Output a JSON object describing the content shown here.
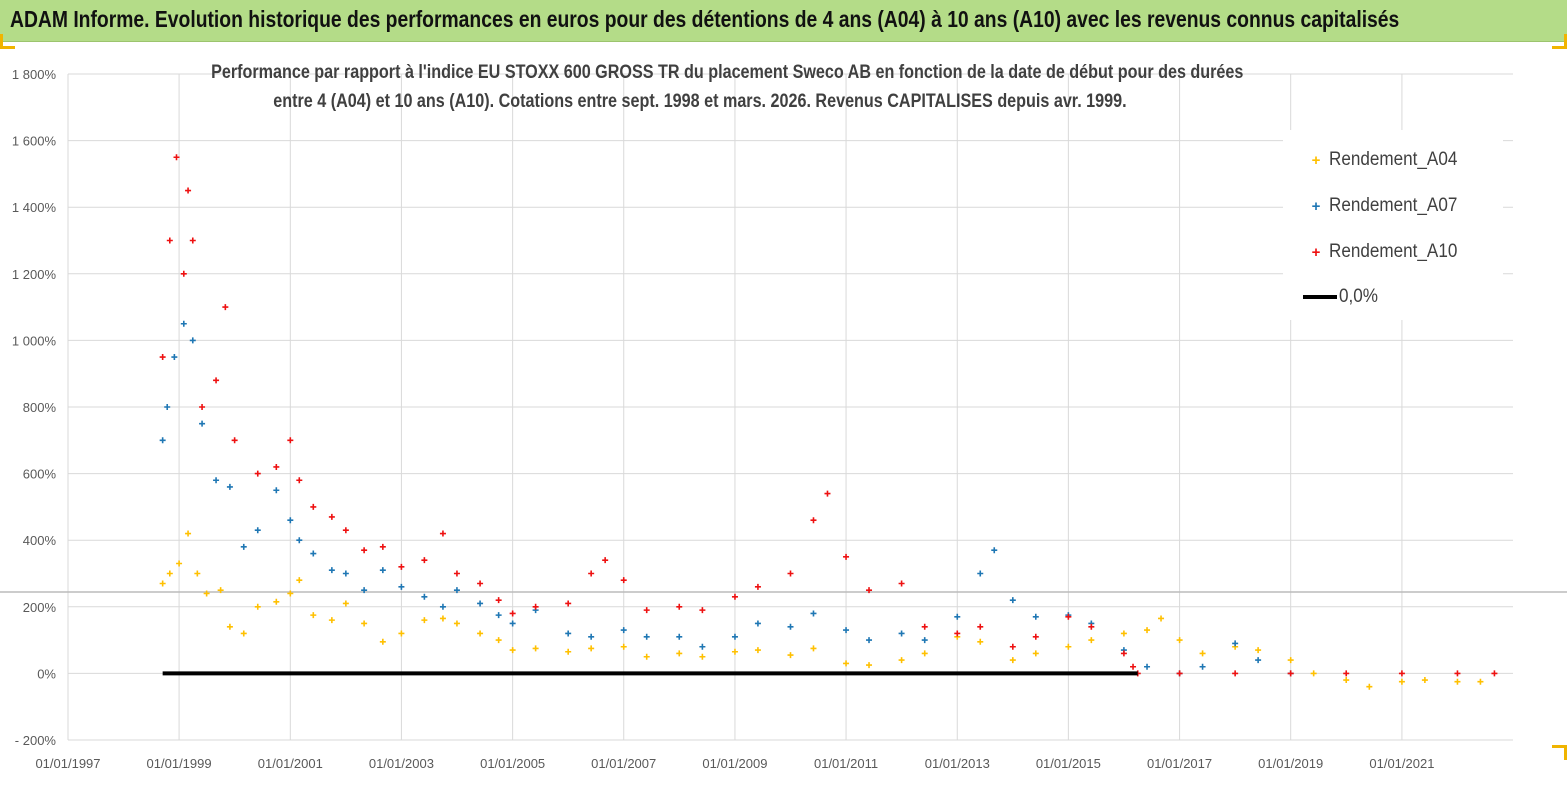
{
  "banner": {
    "title": "ADAM Informe. Evolution historique des performances en euros pour des détentions de 4 ans (A04) à 10 ans (A10) avec les revenus connus capitalisés"
  },
  "chart_data": {
    "type": "scatter",
    "title_line1": "Performance par rapport à l'indice EU STOXX 600 GROSS TR  du placement Sweco AB en fonction de la date de début pour des durées",
    "title_line2": "entre 4 (A04) et 10 ans (A10).  Cotations entre sept. 1998 et mars. 2026.  Revenus CAPITALISES depuis avr. 1999.",
    "xlabel": "",
    "ylabel": "",
    "x_range": [
      "1997-01-01",
      "2023-01-01"
    ],
    "ylim": [
      -200,
      1800
    ],
    "y_ticks": [
      -200,
      0,
      200,
      400,
      600,
      800,
      1000,
      1200,
      1400,
      1600,
      1800
    ],
    "y_tick_labels": [
      "- 200%",
      "0%",
      "200%",
      "400%",
      "600%",
      "800%",
      "1 000%",
      "1 200%",
      "1 400%",
      "1 600%",
      "1 800%"
    ],
    "x_ticks": [
      "1997-01-01",
      "1999-01-01",
      "2001-01-01",
      "2003-01-01",
      "2005-01-01",
      "2007-01-01",
      "2009-01-01",
      "2011-01-01",
      "2013-01-01",
      "2015-01-01",
      "2017-01-01",
      "2019-01-01",
      "2021-01-01"
    ],
    "x_tick_labels": [
      "01/01/1997",
      "01/01/1999",
      "01/01/2001",
      "01/01/2003",
      "01/01/2005",
      "01/01/2007",
      "01/01/2009",
      "01/01/2011",
      "01/01/2013",
      "01/01/2015",
      "01/01/2017",
      "01/01/2019",
      "01/01/2021"
    ],
    "grid": true,
    "legend_position": "top-right",
    "series": [
      {
        "name": "Rendement_A04",
        "color": "#ffc000",
        "marker": "+",
        "points": [
          [
            "1998-09-15",
            270
          ],
          [
            "1998-11-01",
            300
          ],
          [
            "1999-01-01",
            330
          ],
          [
            "1999-03-01",
            420
          ],
          [
            "1999-05-01",
            300
          ],
          [
            "1999-07-01",
            240
          ],
          [
            "1999-10-01",
            250
          ],
          [
            "1999-12-01",
            140
          ],
          [
            "2000-03-01",
            120
          ],
          [
            "2000-06-01",
            200
          ],
          [
            "2000-10-01",
            215
          ],
          [
            "2001-01-01",
            240
          ],
          [
            "2001-03-01",
            280
          ],
          [
            "2001-06-01",
            175
          ],
          [
            "2001-10-01",
            160
          ],
          [
            "2002-01-01",
            210
          ],
          [
            "2002-05-01",
            150
          ],
          [
            "2002-09-01",
            95
          ],
          [
            "2003-01-01",
            120
          ],
          [
            "2003-06-01",
            160
          ],
          [
            "2003-10-01",
            165
          ],
          [
            "2004-01-01",
            150
          ],
          [
            "2004-06-01",
            120
          ],
          [
            "2004-10-01",
            100
          ],
          [
            "2005-01-01",
            70
          ],
          [
            "2005-06-01",
            75
          ],
          [
            "2006-01-01",
            65
          ],
          [
            "2006-06-01",
            75
          ],
          [
            "2007-01-01",
            80
          ],
          [
            "2007-06-01",
            50
          ],
          [
            "2008-01-01",
            60
          ],
          [
            "2008-06-01",
            50
          ],
          [
            "2009-01-01",
            65
          ],
          [
            "2009-06-01",
            70
          ],
          [
            "2010-01-01",
            55
          ],
          [
            "2010-06-01",
            75
          ],
          [
            "2011-01-01",
            30
          ],
          [
            "2011-06-01",
            25
          ],
          [
            "2012-01-01",
            40
          ],
          [
            "2012-06-01",
            60
          ],
          [
            "2013-01-01",
            110
          ],
          [
            "2013-06-01",
            95
          ],
          [
            "2014-01-01",
            40
          ],
          [
            "2014-06-01",
            60
          ],
          [
            "2015-01-01",
            80
          ],
          [
            "2015-06-01",
            100
          ],
          [
            "2016-01-01",
            120
          ],
          [
            "2016-06-01",
            130
          ],
          [
            "2016-09-01",
            165
          ],
          [
            "2017-01-01",
            100
          ],
          [
            "2017-06-01",
            60
          ],
          [
            "2018-01-01",
            80
          ],
          [
            "2018-06-01",
            70
          ],
          [
            "2019-01-01",
            40
          ],
          [
            "2019-06-01",
            0
          ],
          [
            "2020-01-01",
            -20
          ],
          [
            "2020-06-01",
            -40
          ],
          [
            "2021-01-01",
            -25
          ],
          [
            "2021-06-01",
            -20
          ],
          [
            "2022-01-01",
            -25
          ],
          [
            "2022-06-01",
            -25
          ]
        ]
      },
      {
        "name": "Rendement_A07",
        "color": "#1f77b4",
        "marker": "+",
        "points": [
          [
            "1998-09-15",
            700
          ],
          [
            "1998-10-15",
            800
          ],
          [
            "1998-12-01",
            950
          ],
          [
            "1999-02-01",
            1050
          ],
          [
            "1999-04-01",
            1000
          ],
          [
            "1999-06-01",
            750
          ],
          [
            "1999-09-01",
            580
          ],
          [
            "1999-12-01",
            560
          ],
          [
            "2000-03-01",
            380
          ],
          [
            "2000-06-01",
            430
          ],
          [
            "2000-10-01",
            550
          ],
          [
            "2001-01-01",
            460
          ],
          [
            "2001-03-01",
            400
          ],
          [
            "2001-06-01",
            360
          ],
          [
            "2001-10-01",
            310
          ],
          [
            "2002-01-01",
            300
          ],
          [
            "2002-05-01",
            250
          ],
          [
            "2002-09-01",
            310
          ],
          [
            "2003-01-01",
            260
          ],
          [
            "2003-06-01",
            230
          ],
          [
            "2003-10-01",
            200
          ],
          [
            "2004-01-01",
            250
          ],
          [
            "2004-06-01",
            210
          ],
          [
            "2004-10-01",
            175
          ],
          [
            "2005-01-01",
            150
          ],
          [
            "2005-06-01",
            190
          ],
          [
            "2006-01-01",
            120
          ],
          [
            "2006-06-01",
            110
          ],
          [
            "2007-01-01",
            130
          ],
          [
            "2007-06-01",
            110
          ],
          [
            "2008-01-01",
            110
          ],
          [
            "2008-06-01",
            80
          ],
          [
            "2009-01-01",
            110
          ],
          [
            "2009-06-01",
            150
          ],
          [
            "2010-01-01",
            140
          ],
          [
            "2010-06-01",
            180
          ],
          [
            "2011-01-01",
            130
          ],
          [
            "2011-06-01",
            100
          ],
          [
            "2012-01-01",
            120
          ],
          [
            "2012-06-01",
            100
          ],
          [
            "2013-01-01",
            170
          ],
          [
            "2013-06-01",
            300
          ],
          [
            "2013-09-01",
            370
          ],
          [
            "2014-01-01",
            220
          ],
          [
            "2014-06-01",
            170
          ],
          [
            "2015-01-01",
            175
          ],
          [
            "2015-06-01",
            150
          ],
          [
            "2016-01-01",
            70
          ],
          [
            "2016-06-01",
            20
          ],
          [
            "2017-01-01",
            0
          ],
          [
            "2017-06-01",
            20
          ],
          [
            "2018-01-01",
            90
          ],
          [
            "2018-06-01",
            40
          ],
          [
            "2019-01-01",
            0
          ]
        ]
      },
      {
        "name": "Rendement_A10",
        "color": "#ee1111",
        "marker": "+",
        "points": [
          [
            "1998-09-15",
            950
          ],
          [
            "1998-11-01",
            1300
          ],
          [
            "1998-12-15",
            1550
          ],
          [
            "1999-02-01",
            1200
          ],
          [
            "1999-03-01",
            1450
          ],
          [
            "1999-04-01",
            1300
          ],
          [
            "1999-06-01",
            800
          ],
          [
            "1999-09-01",
            880
          ],
          [
            "1999-11-01",
            1100
          ],
          [
            "2000-01-01",
            700
          ],
          [
            "2000-06-01",
            600
          ],
          [
            "2000-10-01",
            620
          ],
          [
            "2001-01-01",
            700
          ],
          [
            "2001-03-01",
            580
          ],
          [
            "2001-06-01",
            500
          ],
          [
            "2001-10-01",
            470
          ],
          [
            "2002-01-01",
            430
          ],
          [
            "2002-05-01",
            370
          ],
          [
            "2002-09-01",
            380
          ],
          [
            "2003-01-01",
            320
          ],
          [
            "2003-06-01",
            340
          ],
          [
            "2003-10-01",
            420
          ],
          [
            "2004-01-01",
            300
          ],
          [
            "2004-06-01",
            270
          ],
          [
            "2004-10-01",
            220
          ],
          [
            "2005-01-01",
            180
          ],
          [
            "2005-06-01",
            200
          ],
          [
            "2006-01-01",
            210
          ],
          [
            "2006-06-01",
            300
          ],
          [
            "2006-09-01",
            340
          ],
          [
            "2007-01-01",
            280
          ],
          [
            "2007-06-01",
            190
          ],
          [
            "2008-01-01",
            200
          ],
          [
            "2008-06-01",
            190
          ],
          [
            "2009-01-01",
            230
          ],
          [
            "2009-06-01",
            260
          ],
          [
            "2010-01-01",
            300
          ],
          [
            "2010-06-01",
            460
          ],
          [
            "2010-09-01",
            540
          ],
          [
            "2011-01-01",
            350
          ],
          [
            "2011-06-01",
            250
          ],
          [
            "2012-01-01",
            270
          ],
          [
            "2012-06-01",
            140
          ],
          [
            "2013-01-01",
            120
          ],
          [
            "2013-06-01",
            140
          ],
          [
            "2014-01-01",
            80
          ],
          [
            "2014-06-01",
            110
          ],
          [
            "2015-01-01",
            170
          ],
          [
            "2015-06-01",
            140
          ],
          [
            "2016-01-01",
            60
          ],
          [
            "2016-03-01",
            20
          ],
          [
            "2016-04-01",
            0
          ],
          [
            "2017-01-01",
            0
          ],
          [
            "2018-01-01",
            0
          ],
          [
            "2019-01-01",
            0
          ],
          [
            "2020-01-01",
            0
          ],
          [
            "2021-01-01",
            0
          ],
          [
            "2022-01-01",
            0
          ],
          [
            "2022-09-01",
            0
          ]
        ]
      },
      {
        "name": "0,0%",
        "color": "#000000",
        "type": "line",
        "points": [
          [
            "1998-09-15",
            0
          ],
          [
            "2016-04-01",
            0
          ]
        ]
      }
    ]
  }
}
